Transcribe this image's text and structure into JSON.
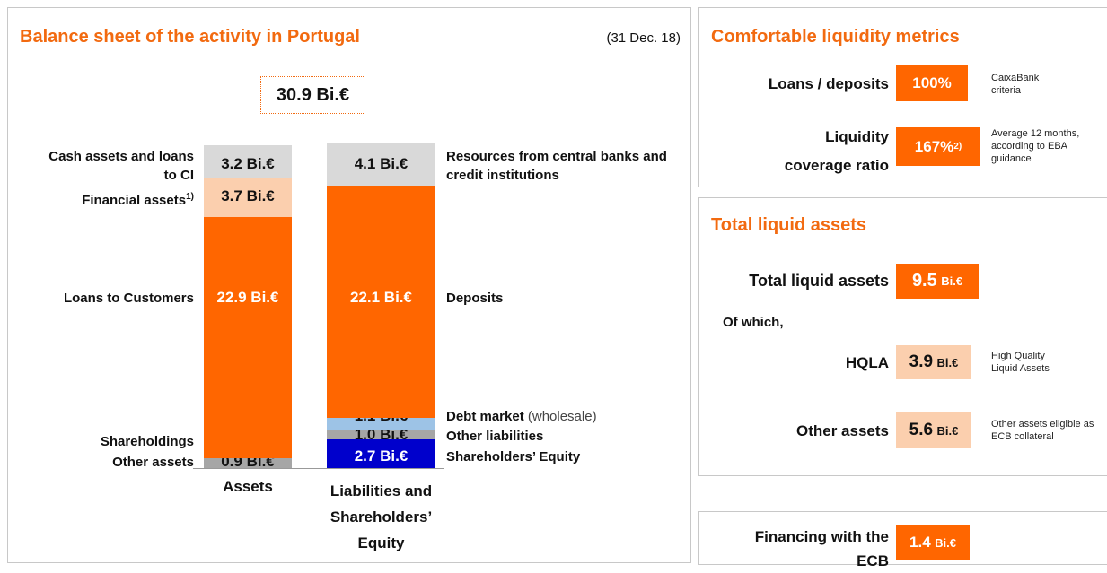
{
  "left": {
    "title": "Balance sheet of the activity in Portugal",
    "date": "(31 Dec. 18)",
    "total": "30.9 Bi.€"
  },
  "chart_data": {
    "type": "stacked-bar",
    "categories": [
      "Assets",
      "Liabilities and Shareholders’ Equity"
    ],
    "bars": [
      {
        "segments": [
          {
            "name": "Other assets",
            "value": 0.9,
            "value_label": "0.9 Bi.€",
            "color": "#a6a6a6"
          },
          {
            "name": "Shareholdings",
            "value": 0.1,
            "value_label": "0.1 Bi.€",
            "color": "#ff6600"
          },
          {
            "name": "Loans to Customers",
            "value": 22.9,
            "value_label": "22.9 Bi.€",
            "color": "#ff6600"
          },
          {
            "name": "Financial assets",
            "note": "1)",
            "value": 3.7,
            "value_label": "3.7 Bi.€",
            "color": "#fbcfae"
          },
          {
            "name": "Cash assets and loans to CI",
            "value": 3.2,
            "value_label": "3.2 Bi.€",
            "color": "#d9d9d9"
          }
        ]
      },
      {
        "segments": [
          {
            "name": "Shareholders’ Equity",
            "value": 2.7,
            "value_label": "2.7 Bi.€",
            "color": "#0000cc"
          },
          {
            "name": "Other liabilities",
            "value": 1.0,
            "value_label": "1.0 Bi.€",
            "color": "#a6a6a6"
          },
          {
            "name": "Debt market",
            "qualifier": "(wholesale)",
            "value": 1.1,
            "value_label": "1.1 Bi.€",
            "color": "#9dc3e6"
          },
          {
            "name": "Deposits",
            "value": 22.1,
            "value_label": "22.1 Bi.€",
            "color": "#ff6600"
          },
          {
            "name": "Resources from central banks and credit institutions",
            "value": 4.1,
            "value_label": "4.1 Bi.€",
            "color": "#d9d9d9"
          }
        ]
      }
    ]
  },
  "liquidity": {
    "title": "Comfortable liquidity metrics",
    "rows": [
      {
        "label": "Loans / deposits",
        "value": "100%",
        "note": "CaixaBank criteria"
      },
      {
        "label": "Liquidity coverage ratio",
        "value": "167%",
        "sup": "2)",
        "note": "Average 12 months, according to EBA guidance"
      }
    ]
  },
  "liquid_assets": {
    "title": "Total liquid assets",
    "total": {
      "label": "Total liquid assets",
      "value": "9.5",
      "unit": "Bi.€"
    },
    "of_which": "Of which,",
    "rows": [
      {
        "label": "HQLA",
        "value": "3.9",
        "unit": "Bi.€",
        "note": "High Quality Liquid Assets"
      },
      {
        "label": "Other assets",
        "value": "5.6",
        "unit": "Bi.€",
        "note": "Other assets eligible as ECB collateral"
      }
    ]
  },
  "ecb": {
    "label": "Financing with the ECB",
    "value": "1.4",
    "unit": "Bi.€"
  }
}
